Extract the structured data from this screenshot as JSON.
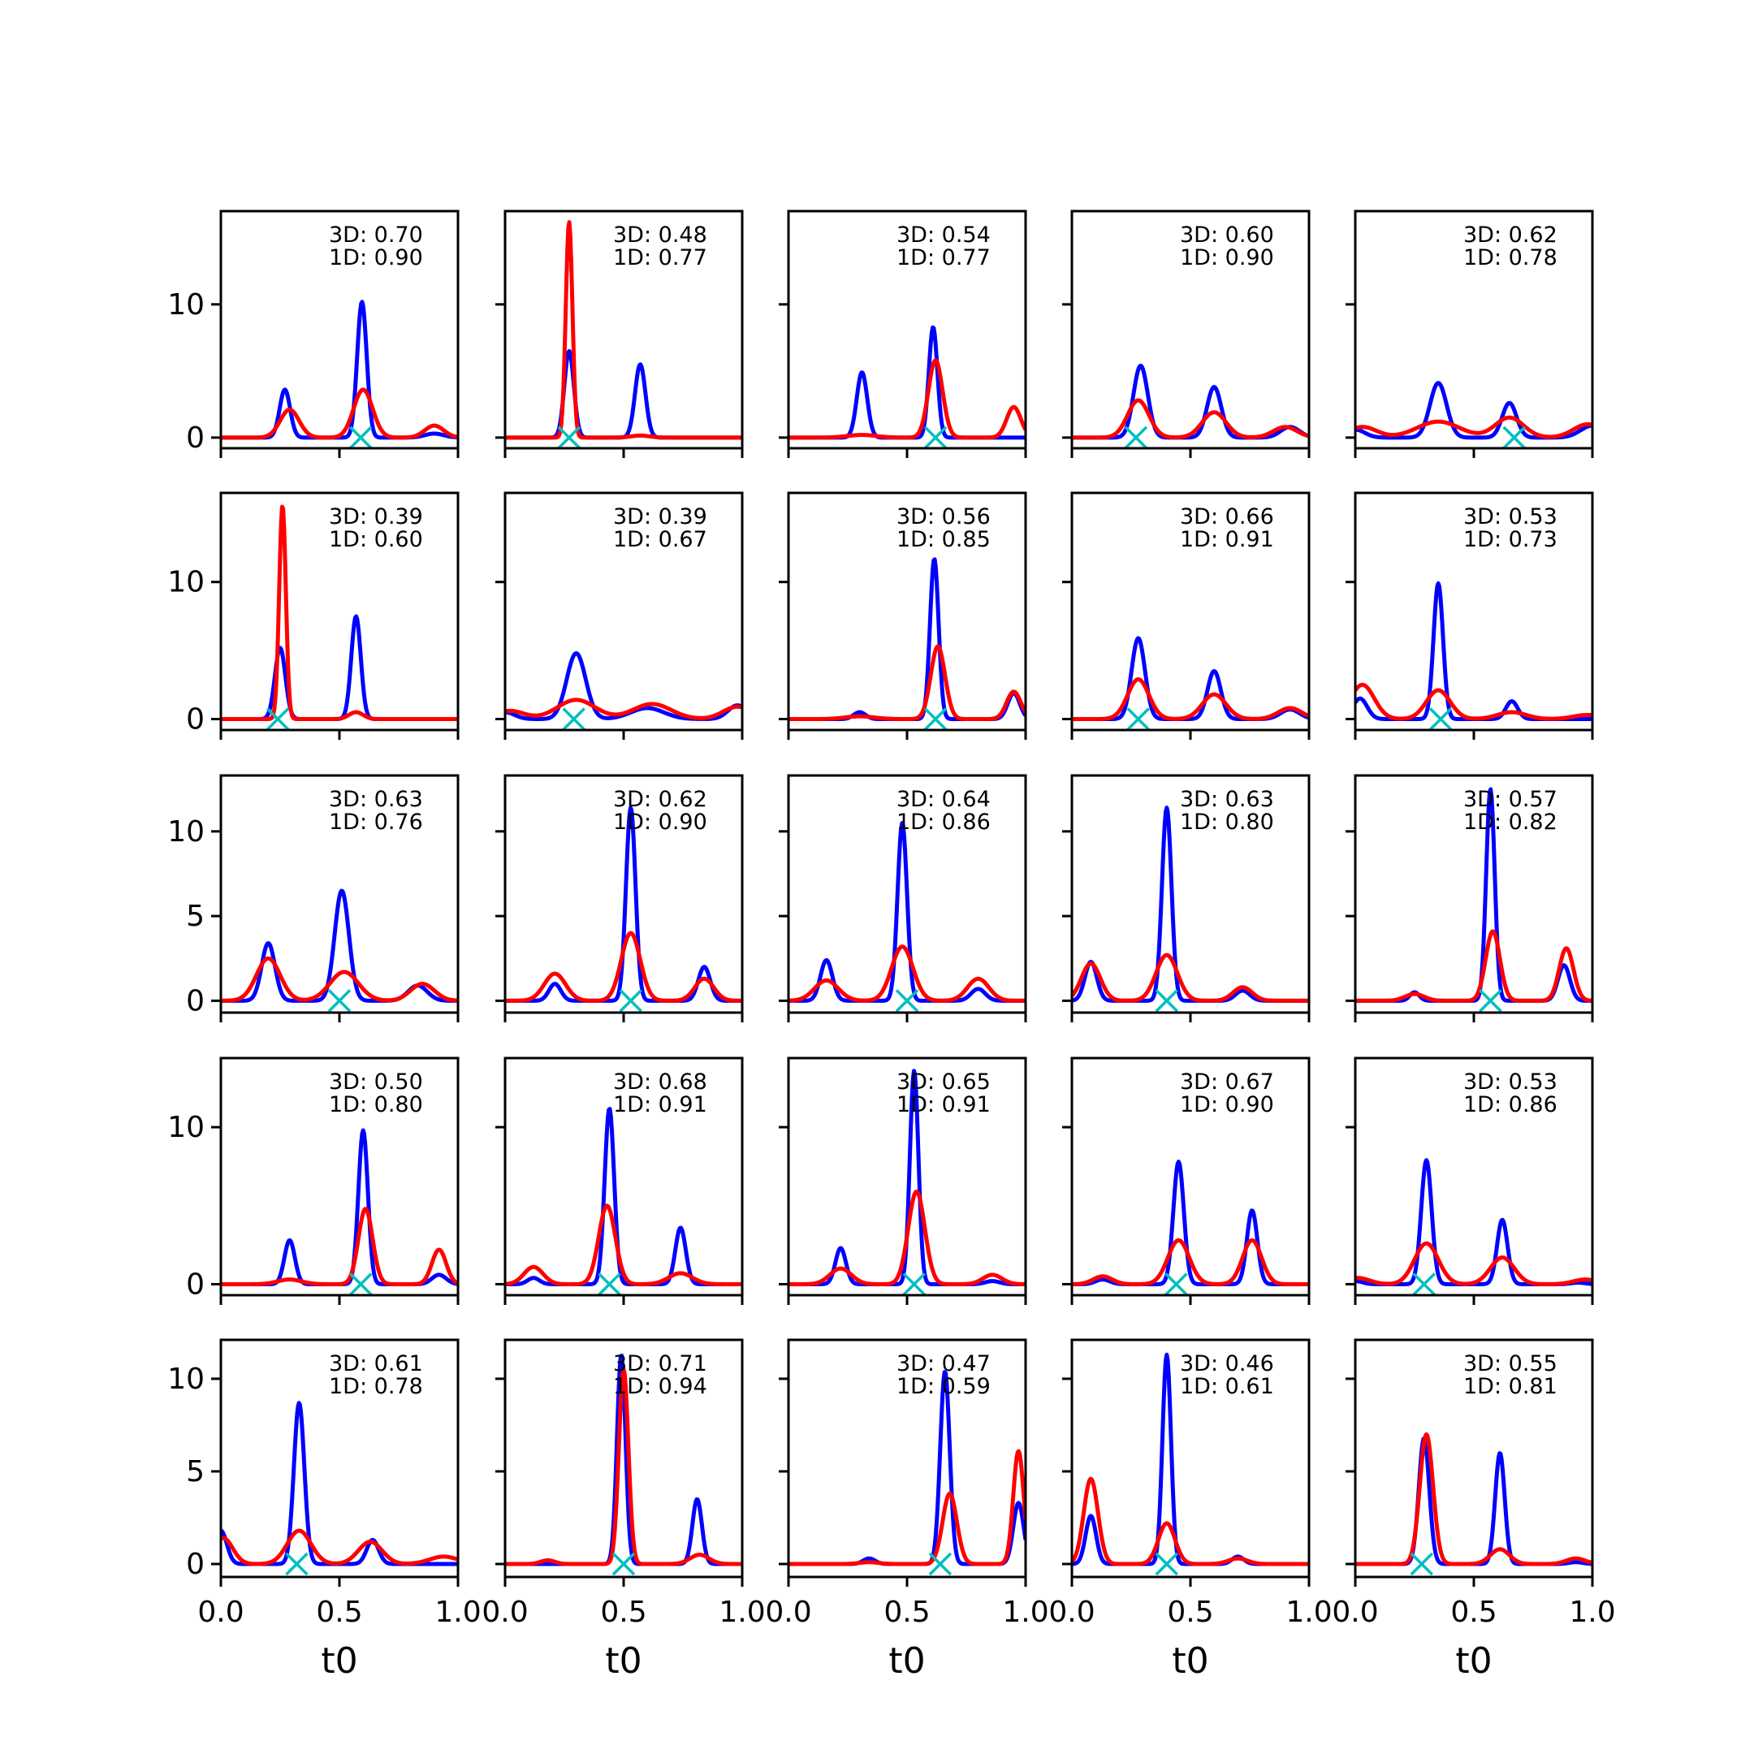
{
  "figure": {
    "rows": 5,
    "cols": 5
  },
  "colors": {
    "blue_series": "#0000ff",
    "red_series": "#ff0000",
    "marker": "#00bfbf",
    "axes": "#000000"
  },
  "chart_data": {
    "type": "line",
    "xlabel": "t0",
    "xlim": [
      0,
      1
    ],
    "x_ticks": [
      0.0,
      0.5,
      1.0
    ],
    "x_tick_labels": [
      "0.0",
      "0.5",
      "1.0"
    ],
    "rows": [
      {
        "ylim": [
          -0.8,
          17
        ],
        "y_ticks": [
          0,
          10
        ],
        "y_tick_labels": [
          "0",
          "10"
        ]
      },
      {
        "ylim": [
          -0.8,
          16.5
        ],
        "y_ticks": [
          0,
          10
        ],
        "y_tick_labels": [
          "0",
          "10"
        ]
      },
      {
        "ylim": [
          -0.7,
          13.3
        ],
        "y_ticks": [
          0,
          5,
          10
        ],
        "y_tick_labels": [
          "0",
          "5",
          "10"
        ]
      },
      {
        "ylim": [
          -0.7,
          14.4
        ],
        "y_ticks": [
          0,
          10
        ],
        "y_tick_labels": [
          "0",
          "10"
        ]
      },
      {
        "ylim": [
          -0.7,
          12.1
        ],
        "y_ticks": [
          0,
          5,
          10
        ],
        "y_tick_labels": [
          "0",
          "5",
          "10"
        ]
      }
    ],
    "panels": [
      {
        "label_3d": "3D: 0.70",
        "label_1d": "1D: 0.90",
        "marker_x": 0.59,
        "blue": [
          [
            0.27,
            3.6,
            0.022
          ],
          [
            0.595,
            10.2,
            0.02
          ],
          [
            0.9,
            0.3,
            0.04
          ]
        ],
        "red": [
          [
            0.29,
            2.1,
            0.04
          ],
          [
            0.6,
            3.6,
            0.04
          ],
          [
            0.9,
            0.9,
            0.04
          ]
        ]
      },
      {
        "label_3d": "3D: 0.48",
        "label_1d": "1D: 0.77",
        "marker_x": 0.27,
        "blue": [
          [
            0.27,
            6.5,
            0.02
          ],
          [
            0.57,
            5.5,
            0.022
          ]
        ],
        "red": [
          [
            0.27,
            16.2,
            0.014
          ],
          [
            0.57,
            0.15,
            0.04
          ]
        ]
      },
      {
        "label_3d": "3D: 0.54",
        "label_1d": "1D: 0.77",
        "marker_x": 0.62,
        "blue": [
          [
            0.31,
            4.9,
            0.022
          ],
          [
            0.61,
            8.3,
            0.018
          ]
        ],
        "red": [
          [
            0.31,
            0.2,
            0.06
          ],
          [
            0.62,
            5.8,
            0.03
          ],
          [
            0.95,
            2.3,
            0.03
          ]
        ]
      },
      {
        "label_3d": "3D: 0.60",
        "label_1d": "1D: 0.90",
        "marker_x": 0.27,
        "blue": [
          [
            0.29,
            5.4,
            0.03
          ],
          [
            0.6,
            3.8,
            0.03
          ],
          [
            0.92,
            0.8,
            0.04
          ]
        ],
        "red": [
          [
            0.28,
            2.8,
            0.045
          ],
          [
            0.6,
            1.9,
            0.05
          ],
          [
            0.9,
            0.8,
            0.05
          ]
        ]
      },
      {
        "label_3d": "3D: 0.62",
        "label_1d": "1D: 0.78",
        "marker_x": 0.67,
        "blue": [
          [
            0.0,
            0.6,
            0.04
          ],
          [
            0.35,
            4.1,
            0.035
          ],
          [
            0.65,
            2.6,
            0.03
          ],
          [
            1.0,
            0.9,
            0.05
          ]
        ],
        "red": [
          [
            0.03,
            0.8,
            0.06
          ],
          [
            0.35,
            1.2,
            0.09
          ],
          [
            0.65,
            1.5,
            0.06
          ],
          [
            0.98,
            1.0,
            0.06
          ]
        ]
      },
      {
        "label_3d": "3D: 0.39",
        "label_1d": "1D: 0.60",
        "marker_x": 0.24,
        "blue": [
          [
            0.25,
            5.2,
            0.022
          ],
          [
            0.57,
            7.5,
            0.02
          ]
        ],
        "red": [
          [
            0.26,
            15.6,
            0.014
          ],
          [
            0.57,
            0.5,
            0.03
          ]
        ]
      },
      {
        "label_3d": "3D: 0.39",
        "label_1d": "1D: 0.67",
        "marker_x": 0.29,
        "blue": [
          [
            0.0,
            0.5,
            0.04
          ],
          [
            0.3,
            4.8,
            0.04
          ],
          [
            0.6,
            0.8,
            0.07
          ],
          [
            0.98,
            1.0,
            0.04
          ]
        ],
        "red": [
          [
            0.02,
            0.6,
            0.06
          ],
          [
            0.3,
            1.4,
            0.08
          ],
          [
            0.62,
            1.1,
            0.08
          ],
          [
            0.98,
            0.9,
            0.06
          ]
        ]
      },
      {
        "label_3d": "3D: 0.56",
        "label_1d": "1D: 0.85",
        "marker_x": 0.62,
        "blue": [
          [
            0.3,
            0.5,
            0.025
          ],
          [
            0.615,
            11.7,
            0.018
          ],
          [
            0.95,
            1.9,
            0.025
          ]
        ],
        "red": [
          [
            0.3,
            0.2,
            0.06
          ],
          [
            0.63,
            5.3,
            0.03
          ],
          [
            0.95,
            2.0,
            0.03
          ]
        ]
      },
      {
        "label_3d": "3D: 0.66",
        "label_1d": "1D: 0.91",
        "marker_x": 0.28,
        "blue": [
          [
            0.28,
            5.9,
            0.028
          ],
          [
            0.6,
            3.5,
            0.028
          ],
          [
            0.92,
            0.7,
            0.04
          ]
        ],
        "red": [
          [
            0.28,
            2.9,
            0.045
          ],
          [
            0.6,
            1.8,
            0.05
          ],
          [
            0.92,
            0.8,
            0.05
          ]
        ]
      },
      {
        "label_3d": "3D: 0.53",
        "label_1d": "1D: 0.73",
        "marker_x": 0.36,
        "blue": [
          [
            0.02,
            1.5,
            0.03
          ],
          [
            0.35,
            9.9,
            0.02
          ],
          [
            0.66,
            1.3,
            0.025
          ]
        ],
        "red": [
          [
            0.03,
            2.5,
            0.05
          ],
          [
            0.35,
            2.1,
            0.05
          ],
          [
            0.66,
            0.5,
            0.06
          ],
          [
            0.98,
            0.3,
            0.06
          ]
        ]
      },
      {
        "label_3d": "3D: 0.63",
        "label_1d": "1D: 0.76",
        "marker_x": 0.5,
        "blue": [
          [
            0.2,
            3.4,
            0.028
          ],
          [
            0.51,
            6.5,
            0.03
          ],
          [
            0.83,
            0.9,
            0.04
          ]
        ],
        "red": [
          [
            0.2,
            2.5,
            0.05
          ],
          [
            0.52,
            1.7,
            0.06
          ],
          [
            0.85,
            1.0,
            0.05
          ]
        ]
      },
      {
        "label_3d": "3D: 0.62",
        "label_1d": "1D: 0.90",
        "marker_x": 0.53,
        "blue": [
          [
            0.21,
            1.0,
            0.025
          ],
          [
            0.53,
            11.4,
            0.02
          ],
          [
            0.84,
            2.0,
            0.025
          ]
        ],
        "red": [
          [
            0.21,
            1.6,
            0.045
          ],
          [
            0.53,
            4.0,
            0.04
          ],
          [
            0.84,
            1.3,
            0.04
          ]
        ]
      },
      {
        "label_3d": "3D: 0.64",
        "label_1d": "1D: 0.86",
        "marker_x": 0.5,
        "blue": [
          [
            0.16,
            2.4,
            0.025
          ],
          [
            0.48,
            10.5,
            0.02
          ],
          [
            0.8,
            0.7,
            0.03
          ]
        ],
        "red": [
          [
            0.16,
            1.2,
            0.05
          ],
          [
            0.48,
            3.2,
            0.045
          ],
          [
            0.8,
            1.3,
            0.045
          ]
        ]
      },
      {
        "label_3d": "3D: 0.63",
        "label_1d": "1D: 0.80",
        "marker_x": 0.4,
        "blue": [
          [
            0.08,
            2.3,
            0.025
          ],
          [
            0.4,
            11.4,
            0.02
          ],
          [
            0.72,
            0.6,
            0.03
          ]
        ],
        "red": [
          [
            0.08,
            2.2,
            0.04
          ],
          [
            0.4,
            2.7,
            0.045
          ],
          [
            0.72,
            0.8,
            0.04
          ]
        ]
      },
      {
        "label_3d": "3D: 0.57",
        "label_1d": "1D: 0.82",
        "marker_x": 0.57,
        "blue": [
          [
            0.25,
            0.5,
            0.02
          ],
          [
            0.57,
            12.5,
            0.018
          ],
          [
            0.88,
            2.1,
            0.025
          ]
        ],
        "red": [
          [
            0.25,
            0.4,
            0.04
          ],
          [
            0.58,
            4.1,
            0.03
          ],
          [
            0.89,
            3.1,
            0.03
          ]
        ]
      },
      {
        "label_3d": "3D: 0.50",
        "label_1d": "1D: 0.80",
        "marker_x": 0.59,
        "blue": [
          [
            0.29,
            2.8,
            0.022
          ],
          [
            0.6,
            9.8,
            0.02
          ],
          [
            0.92,
            0.6,
            0.03
          ]
        ],
        "red": [
          [
            0.29,
            0.3,
            0.05
          ],
          [
            0.61,
            4.8,
            0.03
          ],
          [
            0.92,
            2.2,
            0.03
          ]
        ]
      },
      {
        "label_3d": "3D: 0.68",
        "label_1d": "1D: 0.91",
        "marker_x": 0.44,
        "blue": [
          [
            0.12,
            0.4,
            0.025
          ],
          [
            0.44,
            11.2,
            0.02
          ],
          [
            0.74,
            3.6,
            0.022
          ]
        ],
        "red": [
          [
            0.12,
            1.1,
            0.04
          ],
          [
            0.43,
            5.0,
            0.035
          ],
          [
            0.74,
            0.7,
            0.05
          ]
        ]
      },
      {
        "label_3d": "3D: 0.65",
        "label_1d": "1D: 0.91",
        "marker_x": 0.53,
        "blue": [
          [
            0.22,
            2.3,
            0.022
          ],
          [
            0.53,
            13.6,
            0.018
          ],
          [
            0.86,
            0.2,
            0.03
          ]
        ],
        "red": [
          [
            0.22,
            1.0,
            0.045
          ],
          [
            0.54,
            5.9,
            0.035
          ],
          [
            0.86,
            0.6,
            0.04
          ]
        ]
      },
      {
        "label_3d": "3D: 0.67",
        "label_1d": "1D: 0.90",
        "marker_x": 0.44,
        "blue": [
          [
            0.13,
            0.3,
            0.03
          ],
          [
            0.45,
            7.8,
            0.022
          ],
          [
            0.76,
            4.7,
            0.022
          ]
        ],
        "red": [
          [
            0.13,
            0.5,
            0.04
          ],
          [
            0.45,
            2.8,
            0.045
          ],
          [
            0.76,
            2.8,
            0.04
          ]
        ]
      },
      {
        "label_3d": "3D: 0.53",
        "label_1d": "1D: 0.86",
        "marker_x": 0.29,
        "blue": [
          [
            0.0,
            0.2,
            0.03
          ],
          [
            0.3,
            7.9,
            0.022
          ],
          [
            0.62,
            4.1,
            0.022
          ],
          [
            0.94,
            0.1,
            0.03
          ]
        ],
        "red": [
          [
            0.01,
            0.4,
            0.05
          ],
          [
            0.3,
            2.6,
            0.05
          ],
          [
            0.62,
            1.7,
            0.05
          ],
          [
            0.97,
            0.3,
            0.05
          ]
        ]
      },
      {
        "label_3d": "3D: 0.61",
        "label_1d": "1D: 0.78",
        "marker_x": 0.32,
        "blue": [
          [
            0.0,
            1.8,
            0.025
          ],
          [
            0.33,
            8.7,
            0.022
          ],
          [
            0.64,
            1.3,
            0.025
          ]
        ],
        "red": [
          [
            0.01,
            1.4,
            0.04
          ],
          [
            0.33,
            1.8,
            0.05
          ],
          [
            0.63,
            1.2,
            0.05
          ],
          [
            0.94,
            0.4,
            0.06
          ]
        ]
      },
      {
        "label_3d": "3D: 0.71",
        "label_1d": "1D: 0.94",
        "marker_x": 0.5,
        "blue": [
          [
            0.49,
            11.3,
            0.018
          ],
          [
            0.81,
            3.5,
            0.02
          ]
        ],
        "red": [
          [
            0.18,
            0.2,
            0.03
          ],
          [
            0.5,
            10.5,
            0.02
          ],
          [
            0.82,
            0.5,
            0.04
          ]
        ]
      },
      {
        "label_3d": "3D: 0.47",
        "label_1d": "1D: 0.59",
        "marker_x": 0.64,
        "blue": [
          [
            0.34,
            0.3,
            0.025
          ],
          [
            0.66,
            10.4,
            0.02
          ],
          [
            0.97,
            3.3,
            0.022
          ]
        ],
        "red": [
          [
            0.34,
            0.1,
            0.04
          ],
          [
            0.68,
            3.8,
            0.03
          ],
          [
            0.97,
            6.1,
            0.022
          ]
        ]
      },
      {
        "label_3d": "3D: 0.46",
        "label_1d": "1D: 0.61",
        "marker_x": 0.4,
        "blue": [
          [
            0.08,
            2.6,
            0.022
          ],
          [
            0.4,
            11.3,
            0.018
          ],
          [
            0.7,
            0.4,
            0.025
          ]
        ],
        "red": [
          [
            0.08,
            4.6,
            0.03
          ],
          [
            0.4,
            2.2,
            0.035
          ],
          [
            0.7,
            0.3,
            0.04
          ]
        ]
      },
      {
        "label_3d": "3D: 0.55",
        "label_1d": "1D: 0.81",
        "marker_x": 0.28,
        "blue": [
          [
            0.29,
            6.8,
            0.022
          ],
          [
            0.61,
            6.0,
            0.02
          ],
          [
            0.93,
            0.1,
            0.03
          ]
        ],
        "red": [
          [
            0.3,
            7.0,
            0.028
          ],
          [
            0.61,
            0.8,
            0.04
          ],
          [
            0.93,
            0.3,
            0.04
          ]
        ]
      }
    ]
  }
}
